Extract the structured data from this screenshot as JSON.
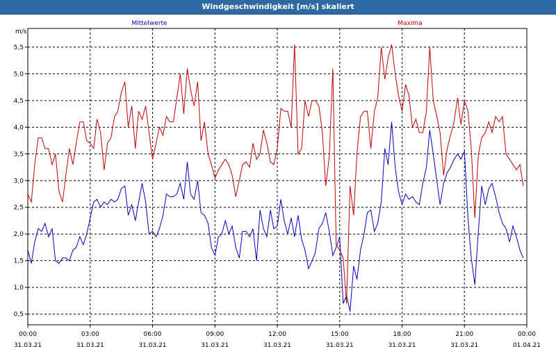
{
  "window": {
    "title": "Windgeschwindigkeit [m/s] skaliert"
  },
  "chart_data": {
    "type": "line",
    "ylabel": "m/s",
    "ylim": [
      0.3,
      5.85
    ],
    "yticks": [
      0.5,
      1.0,
      1.5,
      2.0,
      2.5,
      3.0,
      3.5,
      4.0,
      4.5,
      5.0,
      5.5
    ],
    "ytick_labels": [
      "0,5",
      "1,0",
      "1,5",
      "2,0",
      "2,5",
      "3,0",
      "3,5",
      "4,0",
      "4,5",
      "5,0",
      "5,5"
    ],
    "xlim": [
      0,
      24
    ],
    "xticks": [
      {
        "h": 0,
        "time": "00:00",
        "date": "31.03.21"
      },
      {
        "h": 3,
        "time": "03:00",
        "date": "31.03.21"
      },
      {
        "h": 6,
        "time": "06:00",
        "date": "31.03.21"
      },
      {
        "h": 9,
        "time": "09:00",
        "date": "31.03.21"
      },
      {
        "h": 12,
        "time": "12:00",
        "date": "31.03.21"
      },
      {
        "h": 15,
        "time": "15:00",
        "date": "31.03.21"
      },
      {
        "h": 18,
        "time": "18:00",
        "date": "31.03.21"
      },
      {
        "h": 21,
        "time": "21:00",
        "date": "31.03.21"
      },
      {
        "h": 24,
        "time": "00:00",
        "date": "01.04.21"
      }
    ],
    "grid": true,
    "series": [
      {
        "name": "Mittelwerte",
        "color": "#0000c0",
        "points": [
          [
            0.0,
            1.7
          ],
          [
            0.17,
            1.45
          ],
          [
            0.33,
            1.85
          ],
          [
            0.5,
            2.1
          ],
          [
            0.67,
            2.05
          ],
          [
            0.83,
            2.2
          ],
          [
            1.0,
            1.95
          ],
          [
            1.17,
            2.1
          ],
          [
            1.33,
            1.5
          ],
          [
            1.5,
            1.45
          ],
          [
            1.67,
            1.55
          ],
          [
            1.83,
            1.55
          ],
          [
            2.0,
            1.5
          ],
          [
            2.17,
            1.7
          ],
          [
            2.33,
            1.75
          ],
          [
            2.5,
            1.95
          ],
          [
            2.67,
            1.8
          ],
          [
            2.83,
            2.0
          ],
          [
            3.0,
            2.3
          ],
          [
            3.17,
            2.6
          ],
          [
            3.33,
            2.65
          ],
          [
            3.5,
            2.5
          ],
          [
            3.67,
            2.6
          ],
          [
            3.83,
            2.55
          ],
          [
            4.0,
            2.65
          ],
          [
            4.17,
            2.6
          ],
          [
            4.33,
            2.65
          ],
          [
            4.5,
            2.85
          ],
          [
            4.67,
            2.9
          ],
          [
            4.83,
            2.35
          ],
          [
            5.0,
            2.55
          ],
          [
            5.17,
            2.25
          ],
          [
            5.33,
            2.6
          ],
          [
            5.5,
            2.95
          ],
          [
            5.67,
            2.6
          ],
          [
            5.83,
            2.0
          ],
          [
            6.0,
            2.05
          ],
          [
            6.17,
            1.95
          ],
          [
            6.33,
            2.1
          ],
          [
            6.5,
            2.35
          ],
          [
            6.67,
            2.75
          ],
          [
            6.83,
            2.7
          ],
          [
            7.0,
            2.7
          ],
          [
            7.17,
            2.75
          ],
          [
            7.33,
            2.95
          ],
          [
            7.5,
            2.65
          ],
          [
            7.67,
            3.35
          ],
          [
            7.83,
            2.75
          ],
          [
            8.0,
            2.65
          ],
          [
            8.17,
            3.0
          ],
          [
            8.33,
            2.4
          ],
          [
            8.5,
            2.35
          ],
          [
            8.67,
            2.2
          ],
          [
            8.83,
            1.75
          ],
          [
            9.0,
            1.6
          ],
          [
            9.17,
            1.95
          ],
          [
            9.33,
            2.0
          ],
          [
            9.5,
            2.25
          ],
          [
            9.67,
            2.0
          ],
          [
            9.83,
            2.15
          ],
          [
            10.0,
            1.75
          ],
          [
            10.17,
            1.55
          ],
          [
            10.33,
            2.05
          ],
          [
            10.5,
            2.05
          ],
          [
            10.67,
            1.95
          ],
          [
            10.83,
            2.1
          ],
          [
            11.0,
            1.5
          ],
          [
            11.17,
            2.45
          ],
          [
            11.33,
            2.1
          ],
          [
            11.5,
            1.95
          ],
          [
            11.67,
            2.45
          ],
          [
            11.83,
            2.1
          ],
          [
            12.0,
            2.15
          ],
          [
            12.17,
            2.65
          ],
          [
            12.33,
            2.25
          ],
          [
            12.5,
            2.0
          ],
          [
            12.67,
            2.3
          ],
          [
            12.83,
            1.95
          ],
          [
            13.0,
            2.35
          ],
          [
            13.17,
            1.9
          ],
          [
            13.33,
            1.7
          ],
          [
            13.5,
            1.35
          ],
          [
            13.67,
            1.5
          ],
          [
            13.83,
            1.65
          ],
          [
            14.0,
            2.1
          ],
          [
            14.17,
            2.2
          ],
          [
            14.33,
            2.4
          ],
          [
            14.5,
            2.05
          ],
          [
            14.67,
            1.6
          ],
          [
            14.83,
            1.75
          ],
          [
            15.0,
            1.95
          ],
          [
            15.17,
            0.7
          ],
          [
            15.33,
            0.85
          ],
          [
            15.5,
            0.55
          ],
          [
            15.67,
            1.4
          ],
          [
            15.83,
            1.15
          ],
          [
            16.0,
            1.7
          ],
          [
            16.17,
            2.0
          ],
          [
            16.33,
            2.4
          ],
          [
            16.5,
            2.45
          ],
          [
            16.67,
            2.05
          ],
          [
            16.83,
            2.2
          ],
          [
            17.0,
            2.6
          ],
          [
            17.17,
            3.6
          ],
          [
            17.33,
            3.3
          ],
          [
            17.5,
            4.1
          ],
          [
            17.67,
            3.25
          ],
          [
            17.83,
            2.8
          ],
          [
            18.0,
            2.55
          ],
          [
            18.17,
            2.75
          ],
          [
            18.33,
            2.65
          ],
          [
            18.5,
            2.7
          ],
          [
            18.67,
            2.6
          ],
          [
            18.83,
            2.55
          ],
          [
            19.0,
            2.95
          ],
          [
            19.17,
            3.25
          ],
          [
            19.33,
            3.95
          ],
          [
            19.5,
            3.5
          ],
          [
            19.67,
            3.0
          ],
          [
            19.83,
            2.55
          ],
          [
            20.0,
            2.95
          ],
          [
            20.17,
            3.15
          ],
          [
            20.33,
            3.25
          ],
          [
            20.5,
            3.4
          ],
          [
            20.67,
            3.5
          ],
          [
            20.83,
            3.4
          ],
          [
            21.0,
            3.55
          ],
          [
            21.17,
            2.3
          ],
          [
            21.33,
            1.55
          ],
          [
            21.5,
            1.05
          ],
          [
            21.67,
            2.05
          ],
          [
            21.83,
            2.9
          ],
          [
            22.0,
            2.55
          ],
          [
            22.17,
            2.85
          ],
          [
            22.33,
            2.95
          ],
          [
            22.5,
            2.7
          ],
          [
            22.67,
            2.4
          ],
          [
            22.83,
            2.2
          ],
          [
            23.0,
            2.1
          ],
          [
            23.17,
            1.85
          ],
          [
            23.33,
            2.15
          ],
          [
            23.5,
            1.95
          ],
          [
            23.67,
            1.7
          ],
          [
            23.83,
            1.55
          ]
        ]
      },
      {
        "name": "Maxima",
        "color": "#c00000",
        "points": [
          [
            0.0,
            2.75
          ],
          [
            0.17,
            2.6
          ],
          [
            0.33,
            3.3
          ],
          [
            0.5,
            3.8
          ],
          [
            0.67,
            3.8
          ],
          [
            0.83,
            3.6
          ],
          [
            1.0,
            3.6
          ],
          [
            1.17,
            3.3
          ],
          [
            1.33,
            3.5
          ],
          [
            1.5,
            2.8
          ],
          [
            1.67,
            2.6
          ],
          [
            1.83,
            3.1
          ],
          [
            2.0,
            3.6
          ],
          [
            2.17,
            3.3
          ],
          [
            2.33,
            3.7
          ],
          [
            2.5,
            4.1
          ],
          [
            2.67,
            4.1
          ],
          [
            2.83,
            3.75
          ],
          [
            3.0,
            3.7
          ],
          [
            3.17,
            3.6
          ],
          [
            3.33,
            4.15
          ],
          [
            3.5,
            3.9
          ],
          [
            3.67,
            3.2
          ],
          [
            3.83,
            3.7
          ],
          [
            4.0,
            3.8
          ],
          [
            4.17,
            4.2
          ],
          [
            4.33,
            4.3
          ],
          [
            4.5,
            4.65
          ],
          [
            4.67,
            4.85
          ],
          [
            4.83,
            4.0
          ],
          [
            5.0,
            4.4
          ],
          [
            5.17,
            3.6
          ],
          [
            5.33,
            4.3
          ],
          [
            5.5,
            4.15
          ],
          [
            5.67,
            4.4
          ],
          [
            5.83,
            3.9
          ],
          [
            6.0,
            3.4
          ],
          [
            6.17,
            3.7
          ],
          [
            6.33,
            4.0
          ],
          [
            6.5,
            3.85
          ],
          [
            6.67,
            4.2
          ],
          [
            6.83,
            4.1
          ],
          [
            7.0,
            4.1
          ],
          [
            7.17,
            4.55
          ],
          [
            7.33,
            5.0
          ],
          [
            7.5,
            4.25
          ],
          [
            7.67,
            5.1
          ],
          [
            7.83,
            4.7
          ],
          [
            8.0,
            4.4
          ],
          [
            8.17,
            4.85
          ],
          [
            8.33,
            3.75
          ],
          [
            8.5,
            4.1
          ],
          [
            8.67,
            3.5
          ],
          [
            8.83,
            3.3
          ],
          [
            9.0,
            3.05
          ],
          [
            9.17,
            3.2
          ],
          [
            9.33,
            3.3
          ],
          [
            9.5,
            3.4
          ],
          [
            9.67,
            3.3
          ],
          [
            9.83,
            3.1
          ],
          [
            10.0,
            2.7
          ],
          [
            10.17,
            3.0
          ],
          [
            10.33,
            3.3
          ],
          [
            10.5,
            3.35
          ],
          [
            10.67,
            3.25
          ],
          [
            10.83,
            3.7
          ],
          [
            11.0,
            3.4
          ],
          [
            11.17,
            3.5
          ],
          [
            11.33,
            3.95
          ],
          [
            11.5,
            3.7
          ],
          [
            11.67,
            3.35
          ],
          [
            11.83,
            3.3
          ],
          [
            12.0,
            3.6
          ],
          [
            12.17,
            4.35
          ],
          [
            12.33,
            4.3
          ],
          [
            12.5,
            4.3
          ],
          [
            12.67,
            4.0
          ],
          [
            12.83,
            5.55
          ],
          [
            13.0,
            3.5
          ],
          [
            13.17,
            3.6
          ],
          [
            13.33,
            4.5
          ],
          [
            13.5,
            4.2
          ],
          [
            13.67,
            4.5
          ],
          [
            13.83,
            4.5
          ],
          [
            14.0,
            4.4
          ],
          [
            14.17,
            3.9
          ],
          [
            14.33,
            2.9
          ],
          [
            14.5,
            3.45
          ],
          [
            14.67,
            5.1
          ],
          [
            14.83,
            1.8
          ],
          [
            15.0,
            1.7
          ],
          [
            15.17,
            1.55
          ],
          [
            15.33,
            0.7
          ],
          [
            15.5,
            2.9
          ],
          [
            15.67,
            2.35
          ],
          [
            15.83,
            3.5
          ],
          [
            16.0,
            4.2
          ],
          [
            16.17,
            4.3
          ],
          [
            16.33,
            4.3
          ],
          [
            16.5,
            3.6
          ],
          [
            16.67,
            4.3
          ],
          [
            16.83,
            4.55
          ],
          [
            17.0,
            5.5
          ],
          [
            17.17,
            4.9
          ],
          [
            17.33,
            5.3
          ],
          [
            17.5,
            5.55
          ],
          [
            17.67,
            5.0
          ],
          [
            17.83,
            4.6
          ],
          [
            18.0,
            4.3
          ],
          [
            18.17,
            4.8
          ],
          [
            18.33,
            4.6
          ],
          [
            18.5,
            4.0
          ],
          [
            18.67,
            4.15
          ],
          [
            18.83,
            3.9
          ],
          [
            19.0,
            3.9
          ],
          [
            19.17,
            4.3
          ],
          [
            19.33,
            5.5
          ],
          [
            19.5,
            4.5
          ],
          [
            19.67,
            4.2
          ],
          [
            19.83,
            3.9
          ],
          [
            20.0,
            3.1
          ],
          [
            20.17,
            3.6
          ],
          [
            20.33,
            3.85
          ],
          [
            20.5,
            4.1
          ],
          [
            20.67,
            4.55
          ],
          [
            20.83,
            4.05
          ],
          [
            21.0,
            4.5
          ],
          [
            21.17,
            4.3
          ],
          [
            21.33,
            3.6
          ],
          [
            21.5,
            2.3
          ],
          [
            21.67,
            3.5
          ],
          [
            21.83,
            3.8
          ],
          [
            22.0,
            3.9
          ],
          [
            22.17,
            4.1
          ],
          [
            22.33,
            3.9
          ],
          [
            22.5,
            4.2
          ],
          [
            22.67,
            4.1
          ],
          [
            22.83,
            4.2
          ],
          [
            23.0,
            3.5
          ],
          [
            23.17,
            3.4
          ],
          [
            23.33,
            3.3
          ],
          [
            23.5,
            3.2
          ],
          [
            23.67,
            3.3
          ],
          [
            23.83,
            2.9
          ]
        ]
      }
    ]
  }
}
